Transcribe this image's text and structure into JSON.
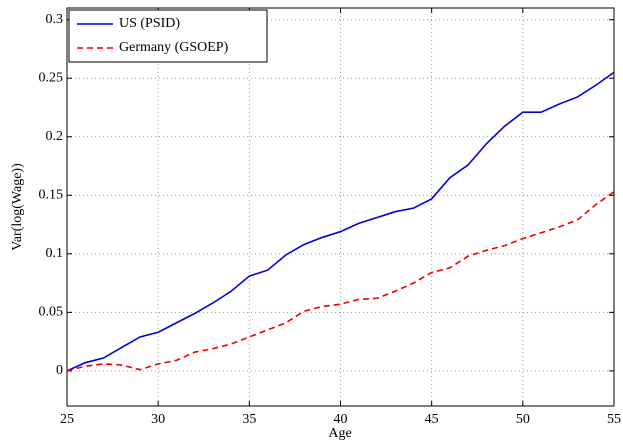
{
  "chart_data": {
    "type": "line",
    "xlabel": "Age",
    "ylabel": "Var(log(Wage))",
    "x": [
      25,
      26,
      27,
      28,
      29,
      30,
      31,
      32,
      33,
      34,
      35,
      36,
      37,
      38,
      39,
      40,
      41,
      42,
      43,
      44,
      45,
      46,
      47,
      48,
      49,
      50,
      51,
      52,
      53,
      54,
      55
    ],
    "series": [
      {
        "name": "US (PSID)",
        "color": "#0000dd",
        "style": "solid",
        "values": [
          0,
          0.007,
          0.011,
          0.02,
          0.029,
          0.033,
          0.041,
          0.049,
          0.058,
          0.068,
          0.081,
          0.086,
          0.099,
          0.108,
          0.114,
          0.119,
          0.126,
          0.131,
          0.136,
          0.139,
          0.147,
          0.165,
          0.176,
          0.194,
          0.209,
          0.221,
          0.221,
          0.228,
          0.234,
          0.244,
          0.255
        ]
      },
      {
        "name": "Germany (GSOEP)",
        "color": "#ee0000",
        "style": "dashed",
        "values": [
          0,
          0.004,
          0.006,
          0.005,
          0.001,
          0.006,
          0.009,
          0.016,
          0.019,
          0.023,
          0.029,
          0.035,
          0.041,
          0.051,
          0.055,
          0.057,
          0.061,
          0.062,
          0.068,
          0.075,
          0.084,
          0.088,
          0.098,
          0.103,
          0.107,
          0.113,
          0.118,
          0.123,
          0.129,
          0.142,
          0.153
        ]
      }
    ],
    "xlim": [
      25,
      55
    ],
    "xticks": [
      25,
      30,
      35,
      40,
      45,
      50,
      55
    ],
    "ylim": [
      -0.03,
      0.31
    ],
    "yticks": [
      0,
      0.05,
      0.1,
      0.15,
      0.2,
      0.25,
      0.3
    ],
    "grid": true,
    "legend": "upper left"
  }
}
